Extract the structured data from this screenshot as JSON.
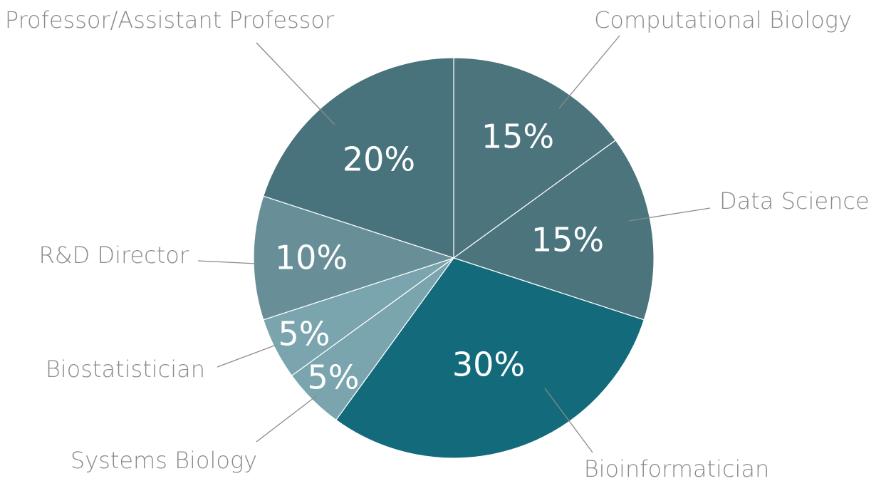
{
  "chart_data": {
    "type": "pie",
    "categories": [
      "Computational Biology",
      "Data Science",
      "Bioinformatician",
      "Systems Biology",
      "Biostatistician",
      "R&D Director",
      "Professor/Assistant Professor"
    ],
    "values": [
      15,
      15,
      30,
      5,
      5,
      10,
      20
    ],
    "value_labels": [
      "15%",
      "15%",
      "30%",
      "5%",
      "5%",
      "10%",
      "20%"
    ],
    "colors": [
      "#4b747d",
      "#4b747d",
      "#136a7b",
      "#7aa5ae",
      "#7aa5ae",
      "#688f98",
      "#48737c"
    ]
  }
}
